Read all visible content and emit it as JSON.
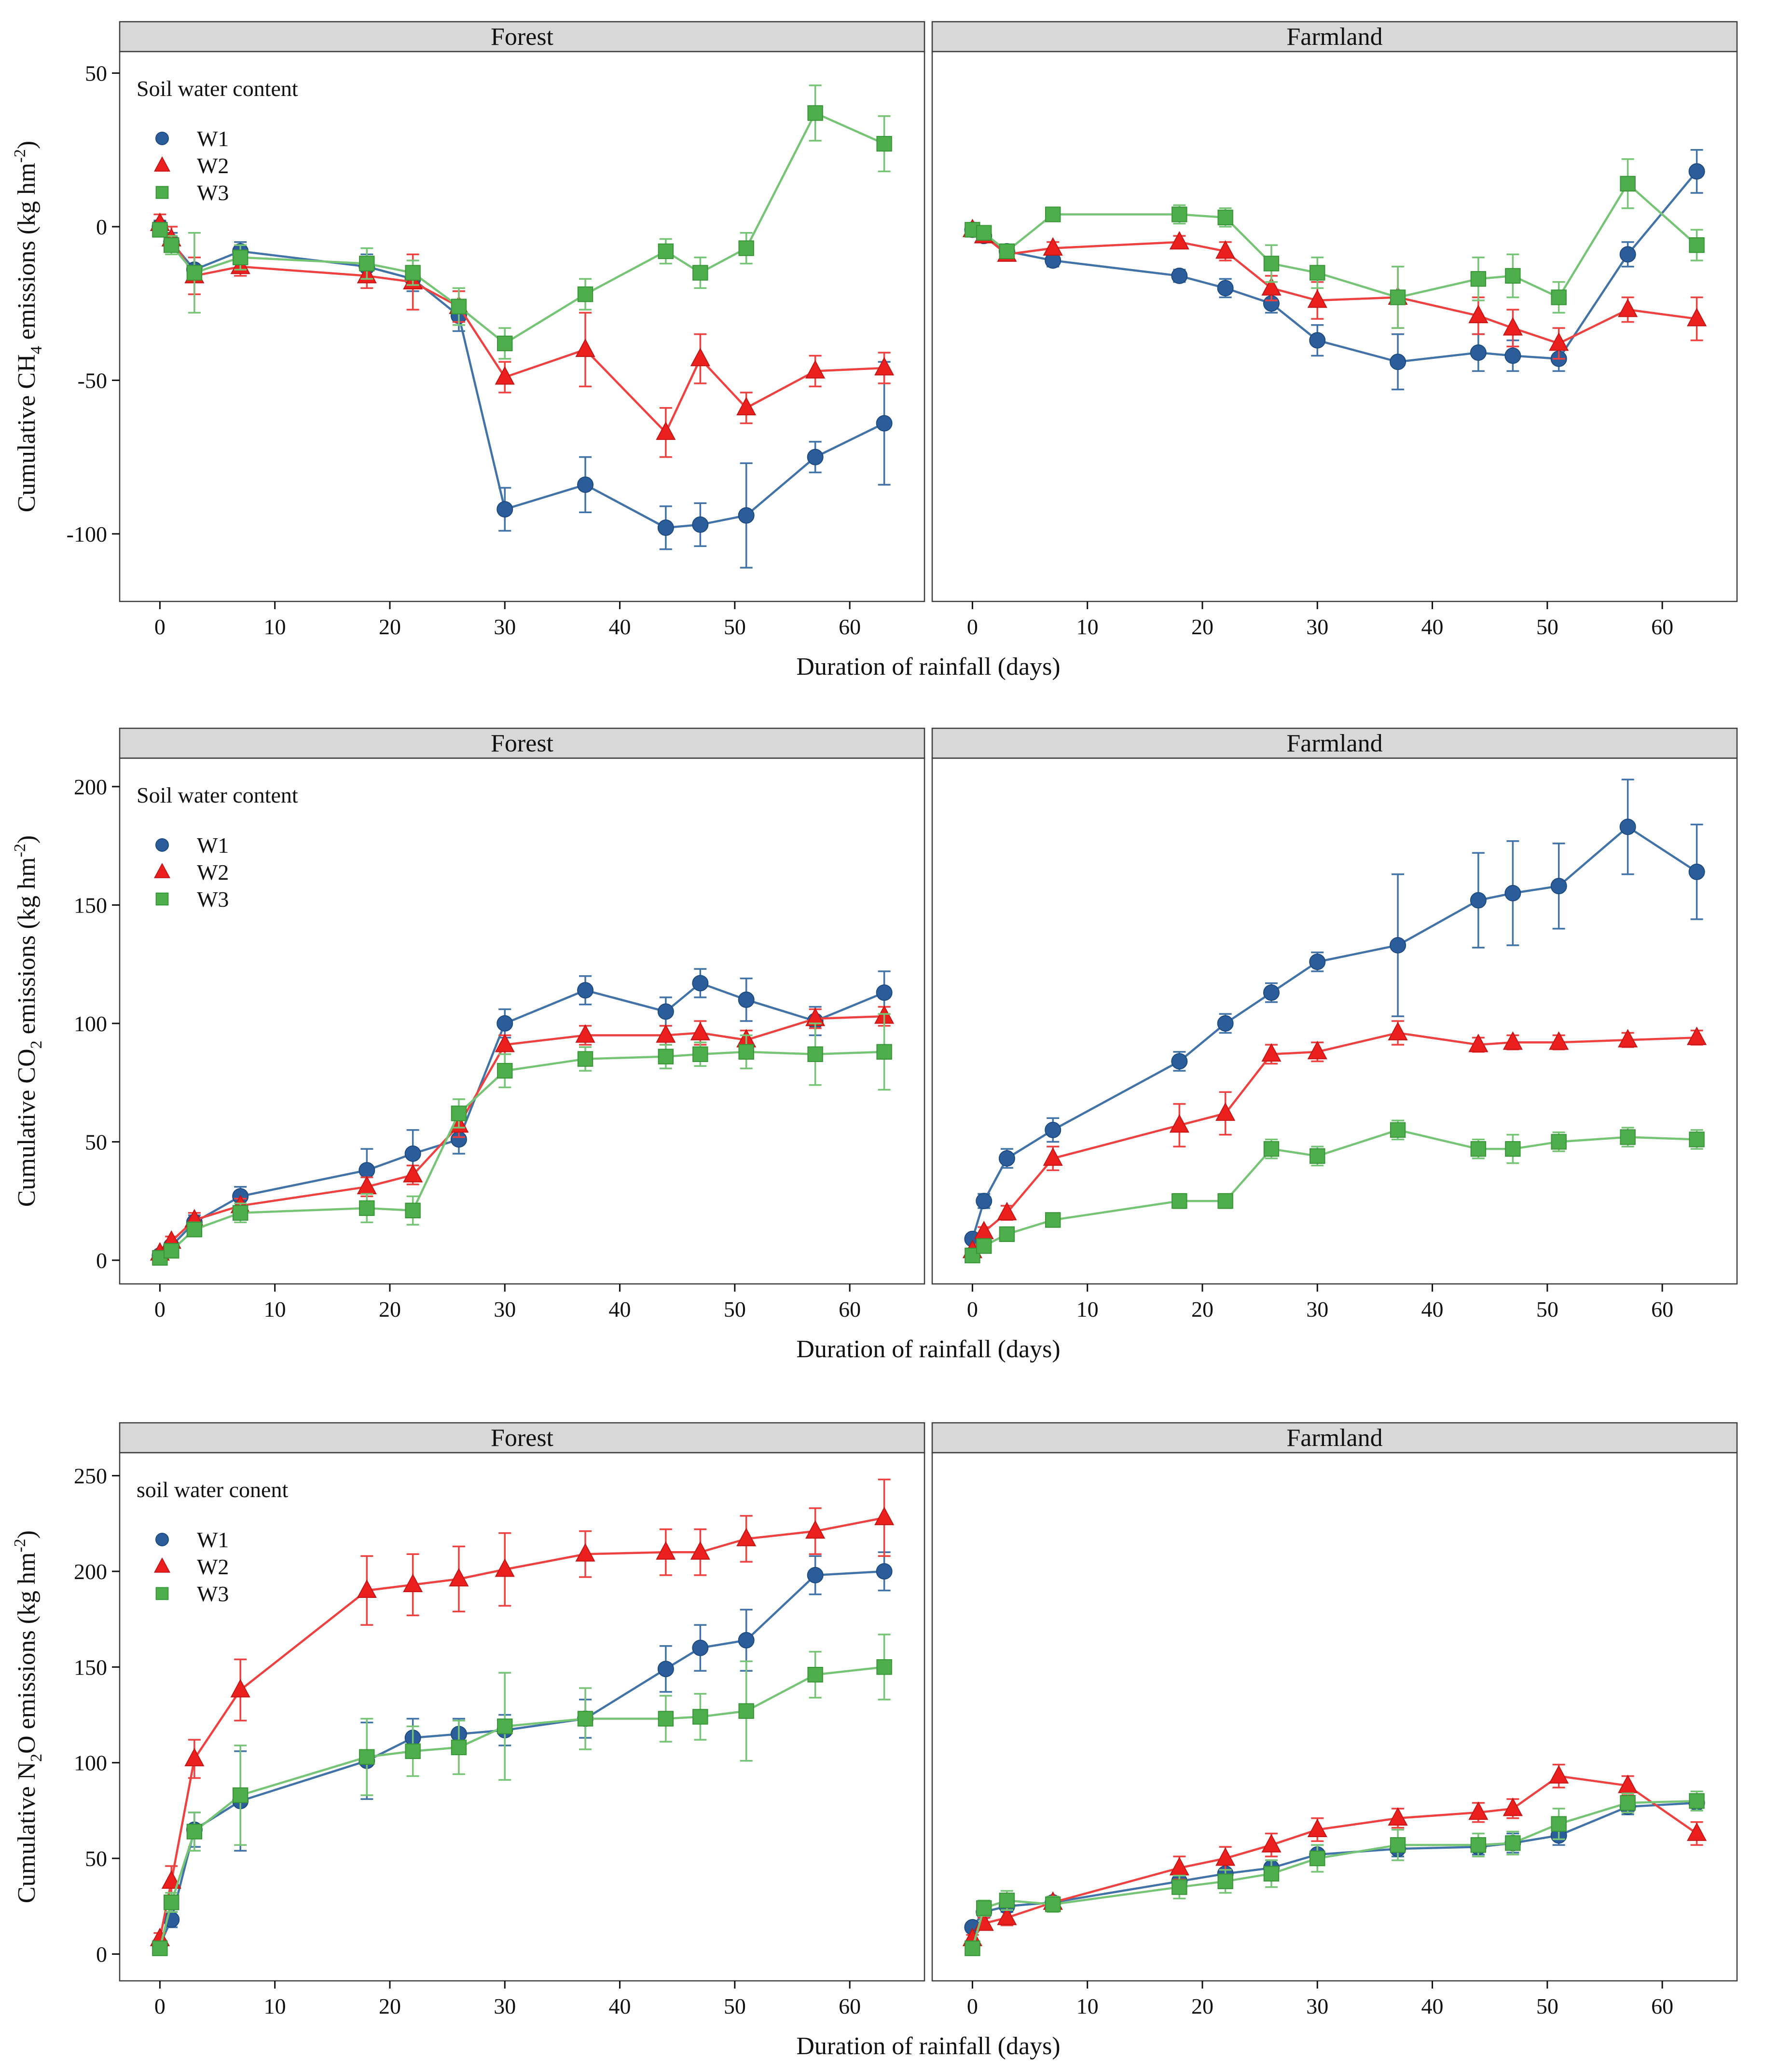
{
  "chart_data": {
    "type": "line",
    "x_axis_note": "shared x: sampling days of rainfall simulation",
    "series_style": {
      "W1": {
        "marker": "circle",
        "fill": "#2b5d9b",
        "edge": "#1d4a80",
        "line": "#4273a8"
      },
      "W2": {
        "marker": "triangle",
        "fill": "#ec1f1f",
        "edge": "#c51414",
        "line": "#f04141"
      },
      "W3": {
        "marker": "square",
        "fill": "#4eae4c",
        "edge": "#379437",
        "line": "#76c475"
      }
    },
    "strip_bg": "#d8d8d8",
    "border_color": "#3c3c3c",
    "figures": [
      {
        "id": "ch4",
        "strip_labels": [
          "Forest",
          "Farmland"
        ],
        "xlabel": "Duration of rainfall (days)",
        "ylabel_parts": [
          {
            "t": "Cumulative CH"
          },
          {
            "t": "4",
            "shift": "sub"
          },
          {
            "t": " emissions (kg hm"
          },
          {
            "t": "-2",
            "shift": "sup"
          },
          {
            "t": ")"
          }
        ],
        "legend": {
          "title": "Soil water content",
          "items": [
            "W1",
            "W2",
            "W3"
          ]
        },
        "x_days": [
          0,
          1,
          3,
          7,
          18,
          22,
          26,
          30,
          37,
          44,
          47,
          51,
          57,
          63
        ],
        "x_ticks": [
          0,
          10,
          20,
          30,
          40,
          50,
          60
        ],
        "y_ticks": [
          50,
          0,
          -50,
          -100
        ],
        "xlim": [
          -3.5,
          66.5
        ],
        "ylim": [
          -122,
          57
        ],
        "panels": [
          {
            "name": "Forest",
            "series": [
              {
                "key": "W1",
                "values": [
                  0,
                  -5,
                  -14,
                  -8,
                  -13,
                  -17,
                  -29,
                  -92,
                  -84,
                  -98,
                  -97,
                  -94,
                  -75,
                  -64
                ],
                "errors": [
                  2,
                  3,
                  4,
                  3,
                  4,
                  4,
                  5,
                  7,
                  9,
                  7,
                  7,
                  17,
                  5,
                  20
                ]
              },
              {
                "key": "W2",
                "values": [
                  1,
                  -4,
                  -16,
                  -13,
                  -16,
                  -18,
                  -26,
                  -49,
                  -40,
                  -67,
                  -43,
                  -59,
                  -47,
                  -46
                ],
                "errors": [
                  3,
                  4,
                  6,
                  3,
                  4,
                  9,
                  5,
                  5,
                  12,
                  8,
                  8,
                  5,
                  5,
                  5
                ]
              },
              {
                "key": "W3",
                "values": [
                  -1,
                  -6,
                  -15,
                  -10,
                  -12,
                  -15,
                  -26,
                  -38,
                  -22,
                  -8,
                  -15,
                  -7,
                  37,
                  27
                ],
                "errors": [
                  2,
                  3,
                  13,
                  4,
                  5,
                  4,
                  6,
                  5,
                  5,
                  4,
                  5,
                  5,
                  9,
                  9
                ]
              }
            ]
          },
          {
            "name": "Farmland",
            "series": [
              {
                "key": "W1",
                "values": [
                  -1,
                  -3,
                  -8,
                  -11,
                  -16,
                  -20,
                  -25,
                  -37,
                  -44,
                  -41,
                  -42,
                  -43,
                  -9,
                  18
                ],
                "errors": [
                  1,
                  1,
                  2,
                  2,
                  2,
                  3,
                  3,
                  5,
                  9,
                  6,
                  5,
                  4,
                  4,
                  7
                ]
              },
              {
                "key": "W2",
                "values": [
                  -1,
                  -3,
                  -9,
                  -7,
                  -5,
                  -8,
                  -20,
                  -24,
                  -23,
                  -29,
                  -33,
                  -38,
                  -27,
                  -30
                ],
                "errors": [
                  1,
                  2,
                  2,
                  2,
                  2,
                  3,
                  4,
                  6,
                  10,
                  6,
                  6,
                  5,
                  4,
                  7
                ]
              },
              {
                "key": "W3",
                "values": [
                  -1,
                  -2,
                  -8,
                  4,
                  4,
                  3,
                  -12,
                  -15,
                  -23,
                  -17,
                  -16,
                  -23,
                  14,
                  -6
                ],
                "errors": [
                  1,
                  1,
                  2,
                  2,
                  3,
                  3,
                  6,
                  5,
                  10,
                  7,
                  7,
                  5,
                  8,
                  5
                ]
              }
            ]
          }
        ]
      },
      {
        "id": "co2",
        "strip_labels": [
          "Forest",
          "Farmland"
        ],
        "xlabel": "Duration of rainfall (days)",
        "ylabel_parts": [
          {
            "t": "Cumulative CO"
          },
          {
            "t": "2",
            "shift": "sub"
          },
          {
            "t": " emissions (kg hm"
          },
          {
            "t": "-2",
            "shift": "sup"
          },
          {
            "t": ")"
          }
        ],
        "legend": {
          "title": "Soil water content",
          "items": [
            "W1",
            "W2",
            "W3"
          ]
        },
        "x_days": [
          0,
          1,
          3,
          7,
          18,
          22,
          26,
          30,
          37,
          44,
          47,
          51,
          57,
          63
        ],
        "x_ticks": [
          0,
          10,
          20,
          30,
          40,
          50,
          60
        ],
        "y_ticks": [
          200,
          150,
          100,
          50,
          0
        ],
        "xlim": [
          -3.5,
          66.5
        ],
        "ylim": [
          -10,
          212
        ],
        "panels": [
          {
            "name": "Forest",
            "series": [
              {
                "key": "W1",
                "values": [
                  2,
                  6,
                  16,
                  27,
                  38,
                  45,
                  51,
                  100,
                  114,
                  105,
                  117,
                  110,
                  101,
                  113
                ],
                "errors": [
                  1,
                  2,
                  3,
                  4,
                  9,
                  10,
                  6,
                  6,
                  6,
                  6,
                  6,
                  9,
                  6,
                  9
                ]
              },
              {
                "key": "W2",
                "values": [
                  3,
                  8,
                  17,
                  23,
                  31,
                  36,
                  57,
                  91,
                  95,
                  95,
                  96,
                  93,
                  102,
                  103
                ],
                "errors": [
                  1,
                  2,
                  3,
                  3,
                  4,
                  4,
                  5,
                  4,
                  4,
                  4,
                  5,
                  4,
                  4,
                  4
                ]
              },
              {
                "key": "W3",
                "values": [
                  1,
                  4,
                  13,
                  20,
                  22,
                  21,
                  62,
                  80,
                  85,
                  86,
                  87,
                  88,
                  87,
                  88
                ],
                "errors": [
                  1,
                  1,
                  3,
                  4,
                  6,
                  6,
                  6,
                  7,
                  5,
                  5,
                  5,
                  7,
                  13,
                  16
                ]
              }
            ]
          },
          {
            "name": "Farmland",
            "series": [
              {
                "key": "W1",
                "values": [
                  9,
                  25,
                  43,
                  55,
                  84,
                  100,
                  113,
                  126,
                  133,
                  152,
                  155,
                  158,
                  183,
                  164
                ],
                "errors": [
                  2,
                  3,
                  4,
                  5,
                  4,
                  4,
                  4,
                  4,
                  30,
                  20,
                  22,
                  18,
                  20,
                  20
                ]
              },
              {
                "key": "W2",
                "values": [
                  4,
                  12,
                  20,
                  43,
                  57,
                  62,
                  87,
                  88,
                  96,
                  91,
                  92,
                  92,
                  93,
                  94
                ],
                "errors": [
                  1,
                  2,
                  3,
                  5,
                  9,
                  9,
                  4,
                  4,
                  5,
                  3,
                  3,
                  3,
                  3,
                  3
                ]
              },
              {
                "key": "W3",
                "values": [
                  2,
                  6,
                  11,
                  17,
                  25,
                  25,
                  47,
                  44,
                  55,
                  47,
                  47,
                  50,
                  52,
                  51
                ],
                "errors": [
                  1,
                  1,
                  2,
                  2,
                  3,
                  3,
                  4,
                  4,
                  4,
                  4,
                  6,
                  4,
                  4,
                  4
                ]
              }
            ]
          }
        ]
      },
      {
        "id": "n2o",
        "strip_labels": [
          "Forest",
          "Farmland"
        ],
        "xlabel": "Duration of rainfall (days)",
        "ylabel_parts": [
          {
            "t": "Cumulative N"
          },
          {
            "t": "2",
            "shift": "sub"
          },
          {
            "t": "O emissions (kg hm"
          },
          {
            "t": "-2",
            "shift": "sup"
          },
          {
            "t": ")"
          }
        ],
        "legend": {
          "title": "soil water conent",
          "items": [
            "W1",
            "W2",
            "W3"
          ]
        },
        "x_days": [
          0,
          1,
          3,
          7,
          18,
          22,
          26,
          30,
          37,
          44,
          47,
          51,
          57,
          63
        ],
        "x_ticks": [
          0,
          10,
          20,
          30,
          40,
          50,
          60
        ],
        "y_ticks": [
          250,
          200,
          150,
          100,
          50,
          0
        ],
        "xlim": [
          -3.5,
          66.5
        ],
        "ylim": [
          -14,
          262
        ],
        "panels": [
          {
            "name": "Forest",
            "series": [
              {
                "key": "W1",
                "values": [
                  5,
                  18,
                  65,
                  80,
                  101,
                  113,
                  115,
                  117,
                  123,
                  149,
                  160,
                  164,
                  198,
                  200
                ],
                "errors": [
                  2,
                  4,
                  9,
                  26,
                  20,
                  10,
                  8,
                  8,
                  10,
                  12,
                  12,
                  16,
                  10,
                  10
                ]
              },
              {
                "key": "W2",
                "values": [
                  8,
                  38,
                  102,
                  138,
                  190,
                  193,
                  196,
                  201,
                  209,
                  210,
                  210,
                  217,
                  221,
                  228
                ],
                "errors": [
                  3,
                  8,
                  10,
                  16,
                  18,
                  16,
                  17,
                  19,
                  12,
                  12,
                  12,
                  12,
                  12,
                  20
                ]
              },
              {
                "key": "W3",
                "values": [
                  3,
                  27,
                  64,
                  83,
                  103,
                  106,
                  108,
                  119,
                  123,
                  123,
                  124,
                  127,
                  146,
                  150
                ],
                "errors": [
                  2,
                  5,
                  10,
                  26,
                  20,
                  13,
                  14,
                  28,
                  16,
                  12,
                  12,
                  26,
                  12,
                  17
                ]
              }
            ]
          },
          {
            "name": "Farmland",
            "series": [
              {
                "key": "W1",
                "values": [
                  14,
                  22,
                  25,
                  27,
                  38,
                  42,
                  45,
                  52,
                  55,
                  56,
                  58,
                  62,
                  77,
                  79
                ],
                "errors": [
                  2,
                  3,
                  3,
                  3,
                  4,
                  5,
                  4,
                  5,
                  4,
                  4,
                  5,
                  5,
                  4,
                  4
                ]
              },
              {
                "key": "W2",
                "values": [
                  8,
                  16,
                  19,
                  27,
                  45,
                  50,
                  57,
                  65,
                  71,
                  74,
                  76,
                  93,
                  88,
                  63
                ],
                "errors": [
                  2,
                  3,
                  4,
                  3,
                  6,
                  6,
                  6,
                  6,
                  5,
                  5,
                  5,
                  6,
                  5,
                  6
                ]
              },
              {
                "key": "W3",
                "values": [
                  3,
                  24,
                  28,
                  26,
                  35,
                  38,
                  42,
                  50,
                  57,
                  57,
                  58,
                  68,
                  79,
                  80
                ],
                "errors": [
                  2,
                  4,
                  5,
                  4,
                  6,
                  6,
                  7,
                  7,
                  8,
                  6,
                  6,
                  8,
                  5,
                  5
                ]
              }
            ]
          }
        ]
      }
    ]
  }
}
